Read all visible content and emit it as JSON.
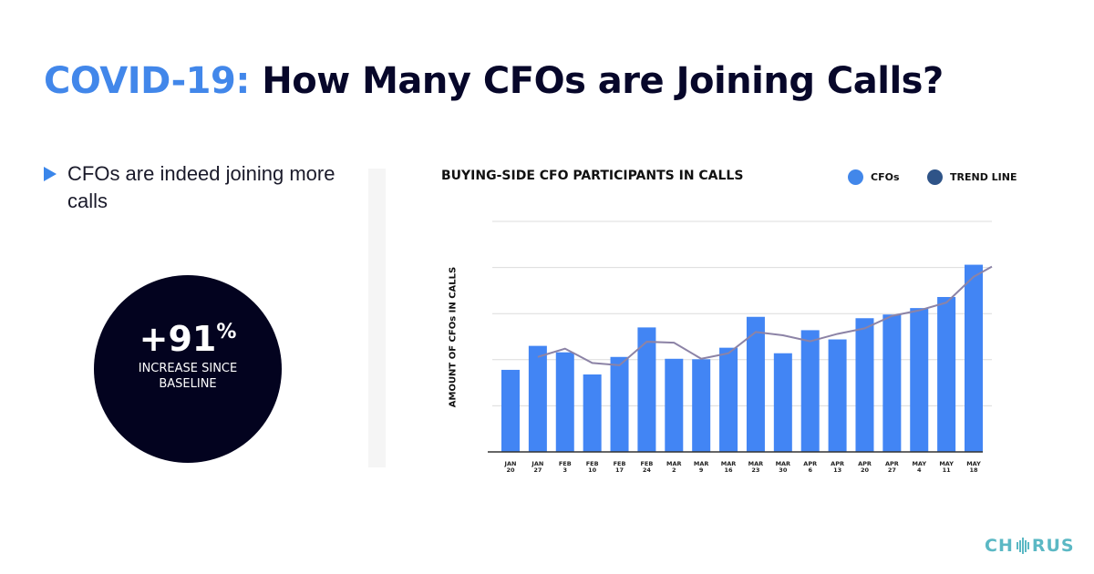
{
  "header": {
    "title_accent": "COVID-19:",
    "title_main": "How Many CFOs are Joining Calls?"
  },
  "bullet": {
    "text": "CFOs are indeed joining more calls",
    "icon": "triangle-right-icon"
  },
  "stat": {
    "value": "+91",
    "unit": "%",
    "label_line1": "INCREASE SINCE",
    "label_line2": "BASELINE"
  },
  "logo": {
    "text_left": "CH",
    "text_right": "RUS",
    "full": "CHORUS"
  },
  "colors": {
    "accent": "#4287ea",
    "bar": "#4285f4",
    "trend": "#8c83a6",
    "legend_trend": "#2f5488",
    "dark": "#03031f",
    "logo": "#5bb8c4"
  },
  "chart_data": {
    "type": "bar",
    "title": "BUYING-SIDE CFO PARTICIPANTS IN CALLS",
    "ylabel": "AMOUNT OF CFOs IN CALLS",
    "xlabel": "",
    "categories": [
      [
        "JAN",
        "20"
      ],
      [
        "JAN",
        "27"
      ],
      [
        "FEB",
        "3"
      ],
      [
        "FEB",
        "10"
      ],
      [
        "FEB",
        "17"
      ],
      [
        "FEB",
        "24"
      ],
      [
        "MAR",
        "2"
      ],
      [
        "MAR",
        "9"
      ],
      [
        "MAR",
        "16"
      ],
      [
        "MAR",
        "23"
      ],
      [
        "MAR",
        "30"
      ],
      [
        "APR",
        "6"
      ],
      [
        "APR",
        "13"
      ],
      [
        "APR",
        "20"
      ],
      [
        "APR",
        "27"
      ],
      [
        "MAY",
        "4"
      ],
      [
        "MAY",
        "11"
      ],
      [
        "MAY",
        "18"
      ]
    ],
    "series": [
      {
        "name": "CFOs",
        "type": "bar",
        "values": [
          1.78,
          2.3,
          2.16,
          1.68,
          2.06,
          2.7,
          2.02,
          2.01,
          2.26,
          2.93,
          2.14,
          2.64,
          2.44,
          2.9,
          2.98,
          3.12,
          3.36,
          4.06
        ]
      },
      {
        "name": "TREND LINE",
        "type": "line",
        "values": [
          null,
          2.06,
          2.24,
          1.93,
          1.88,
          2.39,
          2.37,
          2.02,
          2.14,
          2.6,
          2.53,
          2.4,
          2.56,
          2.68,
          2.95,
          3.07,
          3.24,
          3.8
        ]
      }
    ],
    "ylim": [
      0,
      5
    ],
    "y_ticks_labeled": false,
    "grid": true,
    "legend": "top-right"
  }
}
